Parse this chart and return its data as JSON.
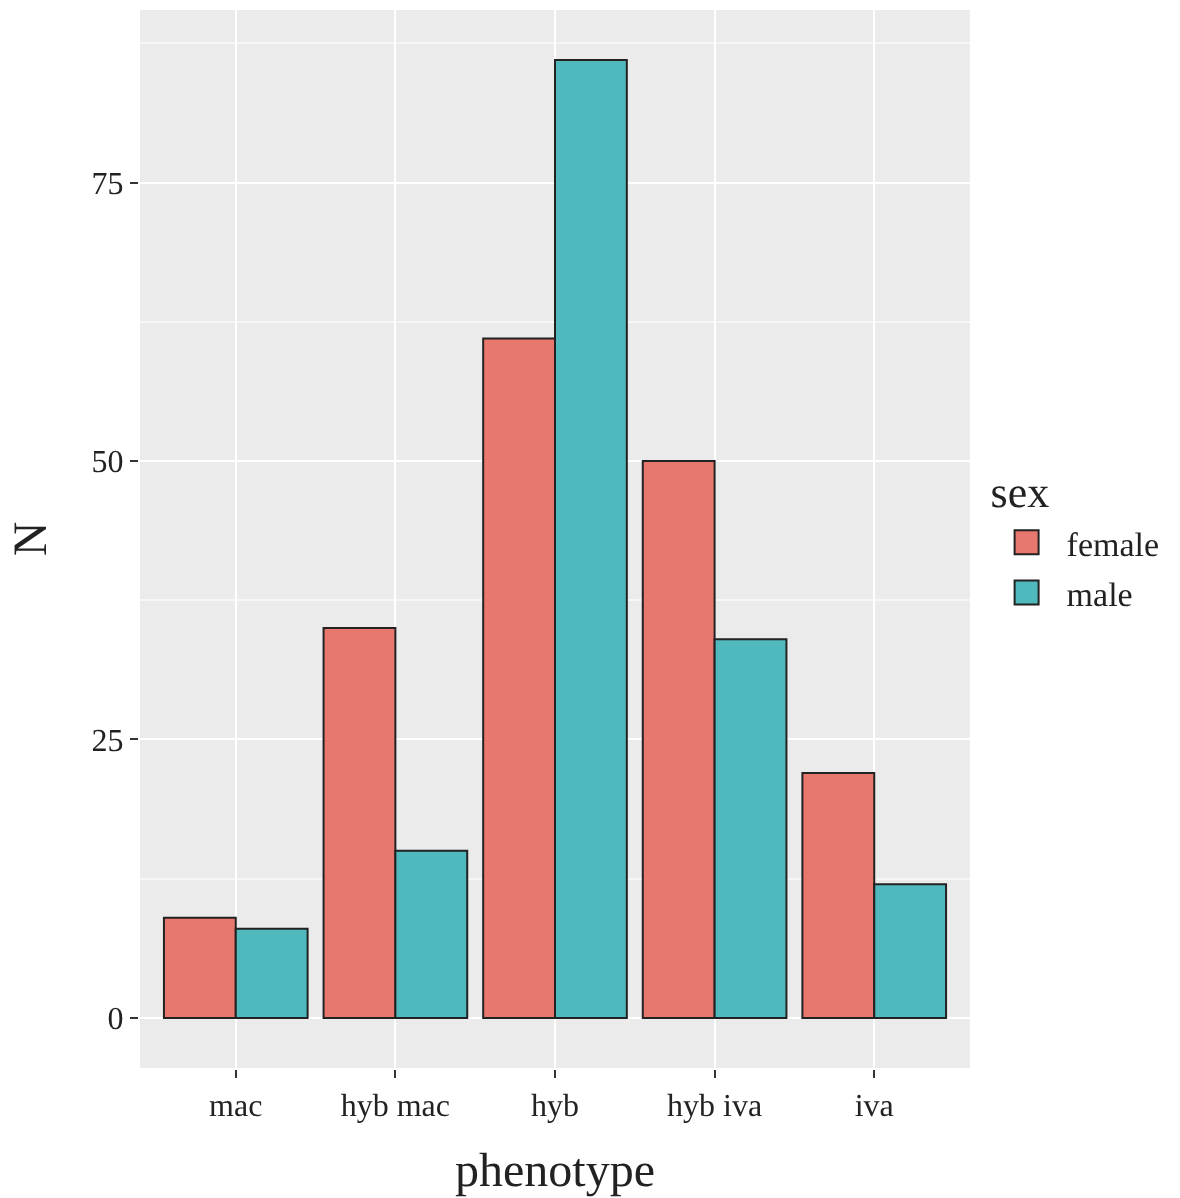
{
  "chart_data": {
    "type": "bar",
    "xlabel": "phenotype",
    "ylabel": "N",
    "legend_title": "sex",
    "categories": [
      "mac",
      "hyb mac",
      "hyb",
      "hyb iva",
      "iva"
    ],
    "series": [
      {
        "name": "female",
        "color": "#e8776d",
        "values": [
          9,
          35,
          61,
          50,
          22
        ]
      },
      {
        "name": "male",
        "color": "#4fb9bd",
        "values": [
          8,
          15,
          86,
          34,
          12
        ]
      }
    ],
    "ylim": [
      -4.5,
      90.5
    ],
    "yticks": [
      0,
      25,
      50,
      75
    ],
    "grid": true,
    "legend": "right"
  }
}
